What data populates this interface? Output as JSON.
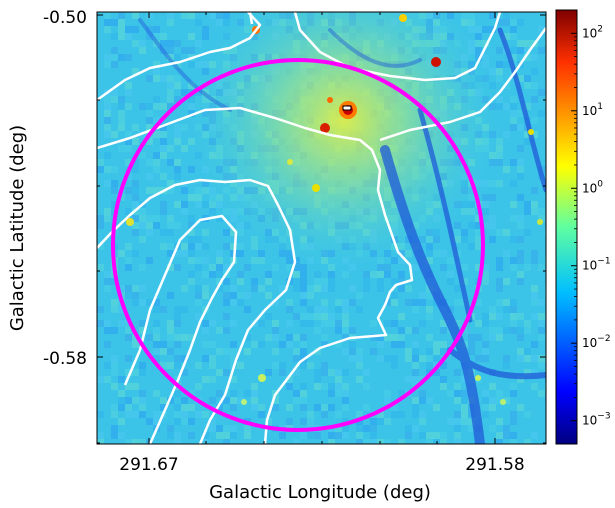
{
  "figure": {
    "xlabel": "Galactic Longitude (deg)",
    "ylabel": "Galactic Latitude (deg)",
    "x_ticks": [
      "291.67",
      "291.58"
    ],
    "y_ticks": [
      "-0.50",
      "-0.58"
    ],
    "colorbar": {
      "colormap": "jet",
      "scale": "log",
      "range": [
        0.0005,
        200
      ],
      "ticks": [
        {
          "value": 100,
          "base": "10",
          "exp": "2"
        },
        {
          "value": 10,
          "base": "10",
          "exp": "1"
        },
        {
          "value": 1,
          "base": "10",
          "exp": "0"
        },
        {
          "value": 0.1,
          "base": "10",
          "exp": "−1"
        },
        {
          "value": 0.01,
          "base": "10",
          "exp": "−2"
        },
        {
          "value": 0.001,
          "base": "10",
          "exp": "−3"
        }
      ]
    },
    "overlays": {
      "circle_color": "#ff00ff",
      "contour_color": "#ffffff"
    }
  }
}
